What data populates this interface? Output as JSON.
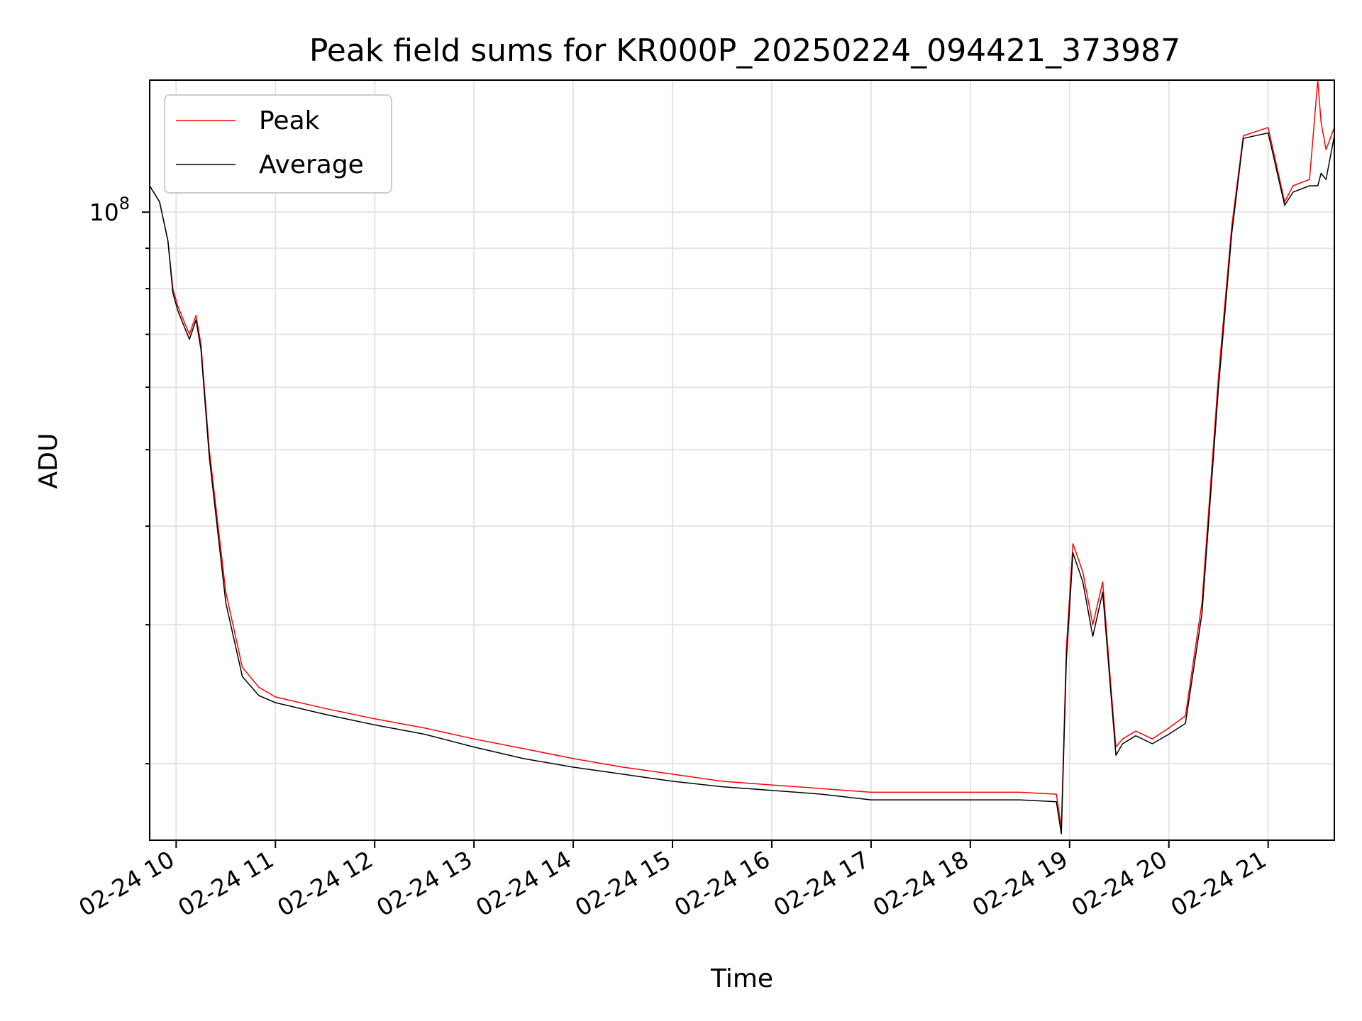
{
  "chart_data": {
    "type": "line",
    "title": "Peak field sums for KR000P_20250224_094421_373987",
    "xlabel": "Time",
    "ylabel": "ADU",
    "y_scale": "log",
    "ylim": [
      16000000,
      147000000
    ],
    "xlim": [
      "2025-02-24 09:44",
      "2025-02-24 21:40"
    ],
    "grid": true,
    "legend_position": "top-left",
    "x_tick_labels": [
      "02-24 10",
      "02-24 11",
      "02-24 12",
      "02-24 13",
      "02-24 14",
      "02-24 15",
      "02-24 16",
      "02-24 17",
      "02-24 18",
      "02-24 19",
      "02-24 20",
      "02-24 21"
    ],
    "y_tick_labels": [
      {
        "base": "10",
        "exp": "8"
      }
    ],
    "series": [
      {
        "name": "Peak",
        "color": "#ff0000",
        "x": [
          "2025-02-24 09:44",
          "2025-02-24 09:50",
          "2025-02-24 09:55",
          "2025-02-24 09:58",
          "2025-02-24 10:01",
          "2025-02-24 10:08",
          "2025-02-24 10:12",
          "2025-02-24 10:15",
          "2025-02-24 10:20",
          "2025-02-24 10:30",
          "2025-02-24 10:40",
          "2025-02-24 10:50",
          "2025-02-24 11:00",
          "2025-02-24 11:30",
          "2025-02-24 12:00",
          "2025-02-24 12:30",
          "2025-02-24 13:00",
          "2025-02-24 13:30",
          "2025-02-24 14:00",
          "2025-02-24 14:30",
          "2025-02-24 15:00",
          "2025-02-24 15:30",
          "2025-02-24 16:00",
          "2025-02-24 16:30",
          "2025-02-24 17:00",
          "2025-02-24 17:30",
          "2025-02-24 18:00",
          "2025-02-24 18:30",
          "2025-02-24 18:52",
          "2025-02-24 18:55",
          "2025-02-24 18:58",
          "2025-02-24 19:02",
          "2025-02-24 19:08",
          "2025-02-24 19:14",
          "2025-02-24 19:20",
          "2025-02-24 19:25",
          "2025-02-24 19:28",
          "2025-02-24 19:32",
          "2025-02-24 19:40",
          "2025-02-24 19:50",
          "2025-02-24 20:00",
          "2025-02-24 20:10",
          "2025-02-24 20:20",
          "2025-02-24 20:30",
          "2025-02-24 20:38",
          "2025-02-24 20:45",
          "2025-02-24 21:00",
          "2025-02-24 21:10",
          "2025-02-24 21:15",
          "2025-02-24 21:25",
          "2025-02-24 21:30",
          "2025-02-24 21:32",
          "2025-02-24 21:35",
          "2025-02-24 21:40"
        ],
        "values": [
          108000000,
          103000000,
          92000000,
          80000000,
          76000000,
          70000000,
          74000000,
          68000000,
          50000000,
          33000000,
          26500000,
          25000000,
          24300000,
          23500000,
          22800000,
          22200000,
          21500000,
          20900000,
          20300000,
          19800000,
          19400000,
          19000000,
          18800000,
          18600000,
          18400000,
          18400000,
          18400000,
          18400000,
          18300000,
          16600000,
          28000000,
          38000000,
          35000000,
          30000000,
          34000000,
          25000000,
          21000000,
          21500000,
          22000000,
          21500000,
          22200000,
          23000000,
          32000000,
          62000000,
          96000000,
          125000000,
          128000000,
          103000000,
          108000000,
          110000000,
          155000000,
          130000000,
          120000000,
          128000000
        ]
      },
      {
        "name": "Average",
        "color": "#000000",
        "x": [
          "2025-02-24 09:44",
          "2025-02-24 09:50",
          "2025-02-24 09:55",
          "2025-02-24 09:58",
          "2025-02-24 10:01",
          "2025-02-24 10:08",
          "2025-02-24 10:12",
          "2025-02-24 10:15",
          "2025-02-24 10:20",
          "2025-02-24 10:30",
          "2025-02-24 10:40",
          "2025-02-24 10:50",
          "2025-02-24 11:00",
          "2025-02-24 11:30",
          "2025-02-24 12:00",
          "2025-02-24 12:30",
          "2025-02-24 13:00",
          "2025-02-24 13:30",
          "2025-02-24 14:00",
          "2025-02-24 14:30",
          "2025-02-24 15:00",
          "2025-02-24 15:30",
          "2025-02-24 16:00",
          "2025-02-24 16:30",
          "2025-02-24 17:00",
          "2025-02-24 17:30",
          "2025-02-24 18:00",
          "2025-02-24 18:30",
          "2025-02-24 18:52",
          "2025-02-24 18:55",
          "2025-02-24 18:58",
          "2025-02-24 19:02",
          "2025-02-24 19:08",
          "2025-02-24 19:14",
          "2025-02-24 19:20",
          "2025-02-24 19:25",
          "2025-02-24 19:28",
          "2025-02-24 19:32",
          "2025-02-24 19:40",
          "2025-02-24 19:50",
          "2025-02-24 20:00",
          "2025-02-24 20:10",
          "2025-02-24 20:20",
          "2025-02-24 20:30",
          "2025-02-24 20:38",
          "2025-02-24 20:45",
          "2025-02-24 21:00",
          "2025-02-24 21:10",
          "2025-02-24 21:15",
          "2025-02-24 21:25",
          "2025-02-24 21:30",
          "2025-02-24 21:32",
          "2025-02-24 21:35",
          "2025-02-24 21:40"
        ],
        "values": [
          108000000,
          103000000,
          92000000,
          79000000,
          75000000,
          69000000,
          73000000,
          67000000,
          49000000,
          32000000,
          25800000,
          24400000,
          23900000,
          23100000,
          22400000,
          21800000,
          21000000,
          20300000,
          19800000,
          19400000,
          19000000,
          18700000,
          18500000,
          18300000,
          18000000,
          18000000,
          18000000,
          18000000,
          17900000,
          16300000,
          27000000,
          37000000,
          34000000,
          29000000,
          33000000,
          24500000,
          20500000,
          21200000,
          21700000,
          21200000,
          21800000,
          22500000,
          31000000,
          60000000,
          94000000,
          124000000,
          126000000,
          102000000,
          106000000,
          108000000,
          108000000,
          112000000,
          110000000,
          125000000
        ]
      }
    ]
  }
}
